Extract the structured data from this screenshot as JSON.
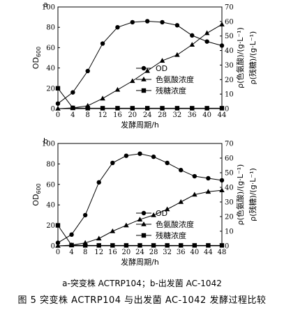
{
  "chart_data": [
    {
      "type": "line",
      "panel": "a",
      "x": [
        0,
        4,
        8,
        12,
        16,
        20,
        24,
        28,
        32,
        36,
        40,
        44
      ],
      "xlabel": "发酵周期/h",
      "ylabel_left": "OD600",
      "ylabel_right_1": "ρ(色氨酸)/(g·L⁻¹)",
      "ylabel_right_2": "ρ(残糖)/(g·L⁻¹)",
      "ylim_left": [
        0,
        100
      ],
      "ylim_right": [
        0,
        70
      ],
      "xticks": [
        0,
        4,
        8,
        12,
        16,
        20,
        24,
        28,
        32,
        36,
        40,
        44
      ],
      "yticks_left": [
        0,
        20,
        40,
        60,
        80,
        100
      ],
      "yticks_right": [
        0,
        10,
        20,
        30,
        40,
        50,
        60,
        70
      ],
      "legend_position": "center-right",
      "series": [
        {
          "name": "OD",
          "marker": "circle",
          "axis": "left",
          "values": [
            5,
            16,
            37,
            64,
            80,
            85,
            86,
            85,
            82,
            72,
            66,
            62
          ]
        },
        {
          "name": "色氨酸浓度",
          "marker": "triangle",
          "axis": "right",
          "values": [
            0,
            0.5,
            2,
            7,
            13,
            19,
            26,
            33,
            37,
            44,
            52,
            58
          ]
        },
        {
          "name": "残糖浓度",
          "marker": "square",
          "axis": "right",
          "values": [
            14,
            0.5,
            0.3,
            0.3,
            0.3,
            0.3,
            0.3,
            0.3,
            0.3,
            0.3,
            0.3,
            0.3
          ]
        }
      ]
    },
    {
      "type": "line",
      "panel": "b",
      "x": [
        0,
        4,
        8,
        12,
        16,
        20,
        24,
        28,
        32,
        36,
        40,
        44,
        48
      ],
      "xlabel": "发酵周期/h",
      "ylabel_left": "OD600",
      "ylabel_right_1": "ρ(色氨酸)/(g·L⁻¹)",
      "ylabel_right_2": "ρ(残糖)/(g·L⁻¹)",
      "ylim_left": [
        0,
        100
      ],
      "ylim_right": [
        0,
        70
      ],
      "xticks": [
        0,
        4,
        8,
        12,
        16,
        20,
        24,
        28,
        32,
        36,
        40,
        44,
        48
      ],
      "yticks_left": [
        0,
        20,
        40,
        60,
        80,
        100
      ],
      "yticks_right": [
        0,
        10,
        20,
        30,
        40,
        50,
        60,
        70
      ],
      "legend_position": "bottom-center",
      "series": [
        {
          "name": "OD",
          "marker": "circle",
          "axis": "left",
          "values": [
            3,
            11,
            30,
            62,
            81,
            88,
            90,
            87,
            81,
            74,
            68,
            66,
            64
          ]
        },
        {
          "name": "色氨酸浓度",
          "marker": "triangle",
          "axis": "right",
          "values": [
            0,
            0.5,
            2,
            5,
            10,
            14,
            18,
            21,
            25,
            30,
            35,
            37,
            38
          ]
        },
        {
          "name": "残糖浓度",
          "marker": "square",
          "axis": "right",
          "values": [
            14,
            0.5,
            0.3,
            0.3,
            0.3,
            0.3,
            0.3,
            0.3,
            0.3,
            0.3,
            0.3,
            0.3,
            0.3
          ]
        }
      ]
    }
  ],
  "panel_labels": [
    "a",
    "b"
  ],
  "caption_sub": "a-突变株 ACTRP104；b-出发菌 AC-1042",
  "caption_main": "图 5    突变株 ACTRP104 与出发菌 AC-1042 发酵过程比较"
}
